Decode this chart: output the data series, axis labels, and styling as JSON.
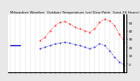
{
  "title": "  Milwaukee Weather  Outdoor Temperature (vs) Dew Point  (Last 24 Hours)",
  "bg_color": "#e8e8e8",
  "plot_bg": "#ffffff",
  "temp_color": "#ff0000",
  "dew_color": "#0000cc",
  "temp_values": [
    null,
    null,
    null,
    null,
    null,
    null,
    28,
    32,
    40,
    46,
    50,
    51,
    48,
    44,
    42,
    40,
    38,
    42,
    50,
    54,
    52,
    46,
    36,
    26
  ],
  "dew_values": [
    22,
    22,
    22,
    null,
    null,
    null,
    18,
    20,
    22,
    24,
    25,
    26,
    25,
    23,
    22,
    20,
    18,
    20,
    24,
    22,
    16,
    8,
    2,
    -2
  ],
  "x_labels": [
    "",
    "",
    "",
    "",
    "",
    "",
    "",
    "",
    "",
    "",
    "",
    "",
    "",
    "",
    "",
    "",
    "",
    "",
    "",
    "",
    "",
    "",
    "",
    ""
  ],
  "ylim": [
    -10,
    60
  ],
  "yticks": [
    0,
    10,
    20,
    30,
    40,
    50
  ],
  "ylabel_fontsize": 3.0,
  "xlabel_fontsize": 2.5,
  "title_fontsize": 3.2,
  "linewidth": 0.6,
  "markersize": 0.8,
  "vline_color": "#aaaaaa",
  "n_points": 24
}
